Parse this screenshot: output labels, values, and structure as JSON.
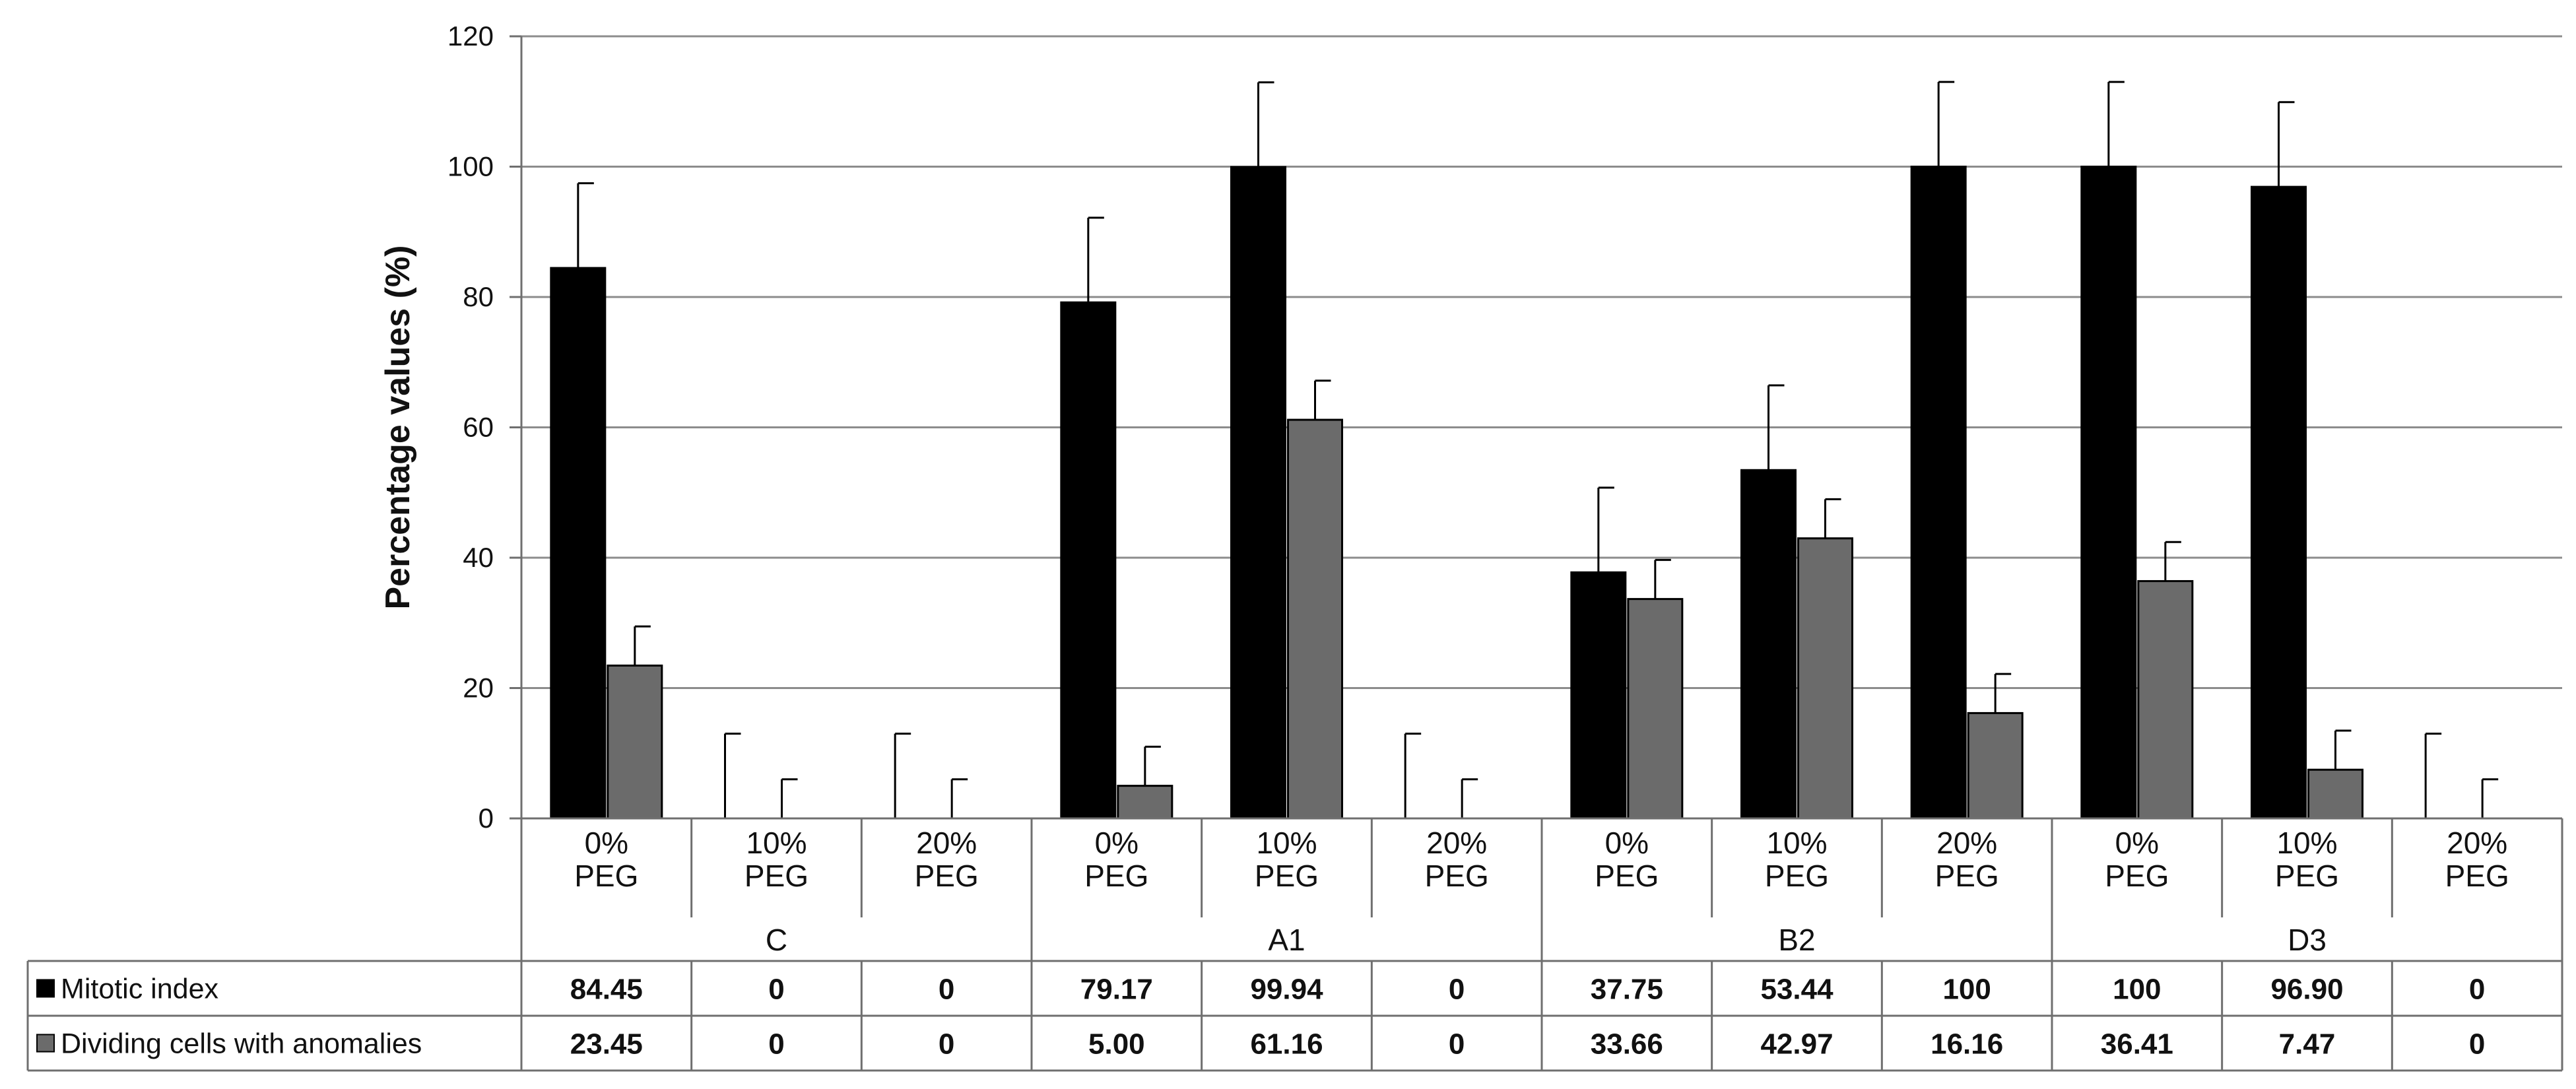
{
  "chart_data": {
    "type": "bar",
    "ylabel": "Percentage values (%)",
    "ylim": [
      0,
      120
    ],
    "yticks": [
      0,
      20,
      40,
      60,
      80,
      100,
      120
    ],
    "grid": true,
    "legend_placement": "table-left",
    "groups": [
      "C",
      "A1",
      "B2",
      "D3"
    ],
    "subcategories": [
      "0%\nPEG",
      "10%\nPEG",
      "20%\nPEG"
    ],
    "categories": [
      "0%\nPEG",
      "10%\nPEG",
      "20%\nPEG",
      "0%\nPEG",
      "10%\nPEG",
      "20%\nPEG",
      "0%\nPEG",
      "10%\nPEG",
      "20%\nPEG",
      "0%\nPEG",
      "10%\nPEG",
      "20%\nPEG"
    ],
    "series": [
      {
        "name": "Mitotic index",
        "color": "#000000",
        "values": [
          84.45,
          0,
          0,
          79.17,
          99.94,
          0,
          37.75,
          53.44,
          100,
          100,
          96.9,
          0
        ],
        "labels": [
          "84.45",
          "0",
          "0",
          "79.17",
          "99.94",
          "0",
          "37.75",
          "53.44",
          "100",
          "100",
          "96.90",
          "0"
        ],
        "error": [
          13,
          13,
          13,
          13,
          13,
          13,
          13,
          13,
          13,
          13,
          13,
          13
        ]
      },
      {
        "name": "Dividing cells with anomalies",
        "color": "#6b6b6b",
        "values": [
          23.45,
          0,
          0,
          5.0,
          61.16,
          0,
          33.66,
          42.97,
          16.16,
          36.41,
          7.47,
          0
        ],
        "labels": [
          "23.45",
          "0",
          "0",
          "5.00",
          "61.16",
          "0",
          "33.66",
          "42.97",
          "16.16",
          "36.41",
          "7.47",
          "0"
        ],
        "error": [
          6,
          6,
          6,
          6,
          6,
          6,
          6,
          6,
          6,
          6,
          6,
          6
        ]
      }
    ]
  }
}
